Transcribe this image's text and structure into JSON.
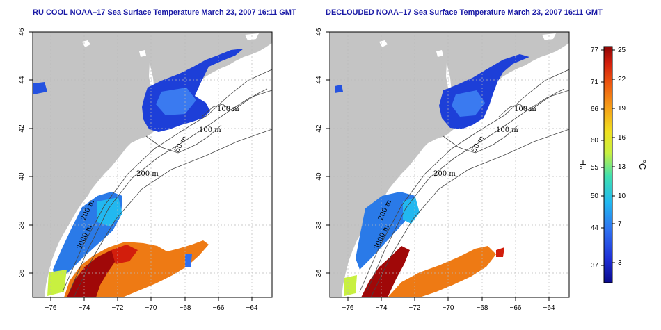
{
  "panels": [
    {
      "id": "left",
      "title": "RU COOL NOAA–17 Sea Surface Temperature March 23, 2007 16:11 GMT",
      "contour_labels": [
        "100 m",
        "100 m",
        "50 m",
        "200 m",
        "3000 m",
        "200 m"
      ]
    },
    {
      "id": "right",
      "title": "DECLOUDED NOAA–17 Sea Surface Temperature March 23, 2007 16:11 GMT",
      "contour_labels": [
        "100 m",
        "100 m",
        "50 m",
        "200 m",
        "3000 m",
        "200 m"
      ]
    }
  ],
  "axes": {
    "x_ticks": [
      "−76",
      "−74",
      "−72",
      "−70",
      "−68",
      "−66",
      "−64"
    ],
    "y_ticks": [
      "46",
      "44",
      "42",
      "40",
      "38",
      "36"
    ],
    "x_range": [
      -77.2,
      -62.8
    ],
    "y_range": [
      35,
      46
    ]
  },
  "colorbar": {
    "fahrenheit_label": "°F",
    "celsius_label": "°C",
    "fahrenheit_ticks": [
      "77",
      "71",
      "66",
      "60",
      "55",
      "50",
      "44",
      "37"
    ],
    "celsius_ticks": [
      "25",
      "22",
      "19",
      "16",
      "13",
      "10",
      "7",
      "3"
    ],
    "colors": [
      "#0a0a8c",
      "#1f2fd6",
      "#2f6ff0",
      "#22b8f0",
      "#3fe0b0",
      "#c8f040",
      "#f0e020",
      "#f5a018",
      "#ee5a10",
      "#d21e0c",
      "#8c0404"
    ]
  },
  "colors": {
    "land": "#c4c4c4",
    "ocean": "#ffffff",
    "title": "#1a1aa6"
  }
}
